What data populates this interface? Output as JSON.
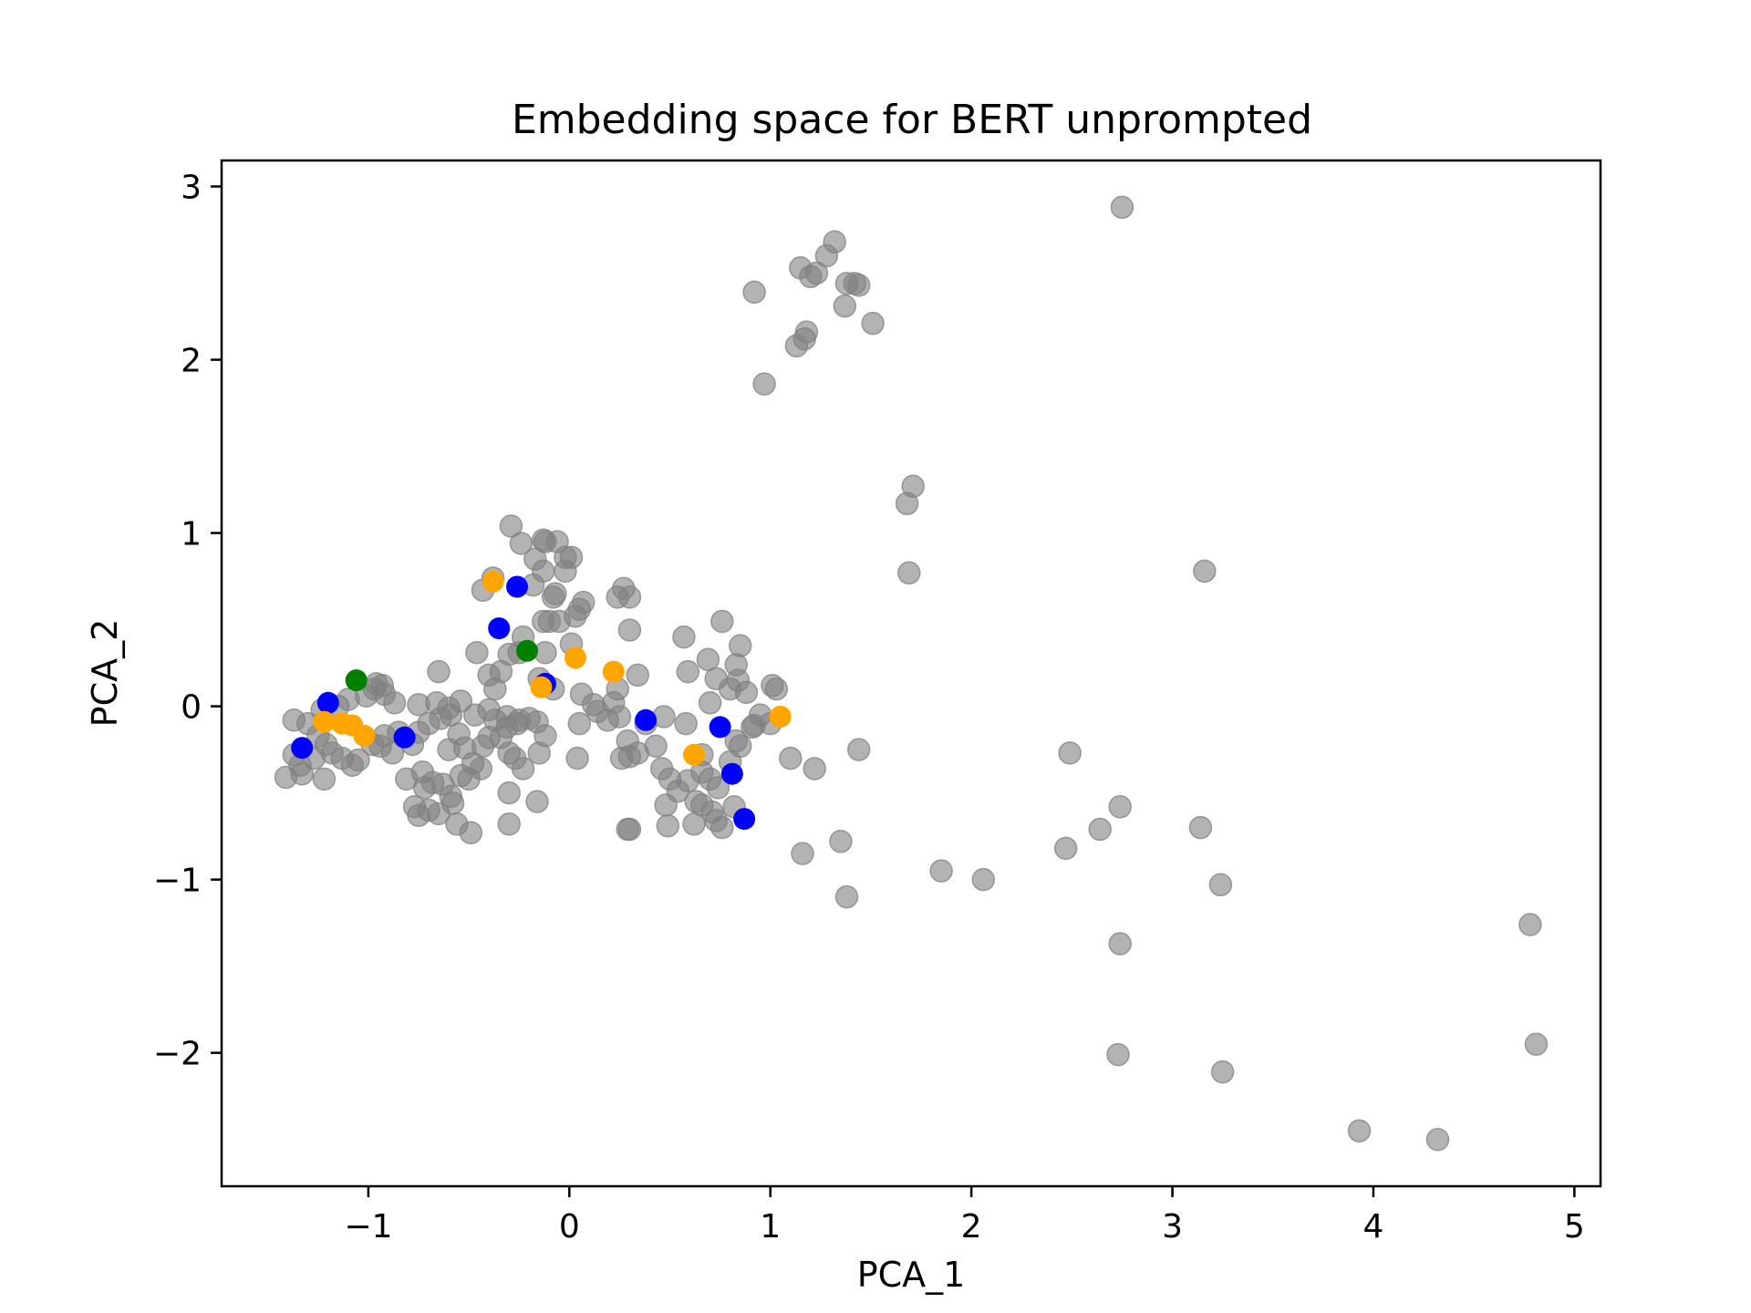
{
  "chart_data": {
    "type": "scatter",
    "title": "Embedding space for BERT unprompted",
    "xlabel": "PCA_1",
    "ylabel": "PCA_2",
    "xlim": [
      -1.73,
      5.13
    ],
    "ylim": [
      -2.77,
      3.15
    ],
    "grid": false,
    "x_ticks": [
      {
        "value": -1,
        "label": "−1"
      },
      {
        "value": 0,
        "label": "0"
      },
      {
        "value": 1,
        "label": "1"
      },
      {
        "value": 2,
        "label": "2"
      },
      {
        "value": 3,
        "label": "3"
      },
      {
        "value": 4,
        "label": "4"
      },
      {
        "value": 5,
        "label": "5"
      }
    ],
    "y_ticks": [
      {
        "value": 3,
        "label": "3"
      },
      {
        "value": 2,
        "label": "2"
      },
      {
        "value": 1,
        "label": "1"
      },
      {
        "value": 0,
        "label": "0"
      },
      {
        "value": -1,
        "label": "−1"
      },
      {
        "value": -2,
        "label": "−2"
      }
    ],
    "series": [
      {
        "color": "#808080",
        "opacity": 0.6,
        "points": [
          [
            2.75,
            2.88
          ],
          [
            1.32,
            2.68
          ],
          [
            1.28,
            2.6
          ],
          [
            1.15,
            2.53
          ],
          [
            1.23,
            2.5
          ],
          [
            1.2,
            2.48
          ],
          [
            1.38,
            2.44
          ],
          [
            1.42,
            2.44
          ],
          [
            1.44,
            2.43
          ],
          [
            0.92,
            2.39
          ],
          [
            1.37,
            2.31
          ],
          [
            1.51,
            2.21
          ],
          [
            1.18,
            2.16
          ],
          [
            1.17,
            2.12
          ],
          [
            1.13,
            2.08
          ],
          [
            0.97,
            1.86
          ],
          [
            1.71,
            1.27
          ],
          [
            1.68,
            1.17
          ],
          [
            1.69,
            0.77
          ],
          [
            3.16,
            0.78
          ],
          [
            2.49,
            -0.27
          ],
          [
            1.44,
            -0.25
          ],
          [
            2.74,
            -0.58
          ],
          [
            2.64,
            -0.71
          ],
          [
            3.14,
            -0.7
          ],
          [
            1.35,
            -0.78
          ],
          [
            2.47,
            -0.82
          ],
          [
            1.16,
            -0.85
          ],
          [
            1.85,
            -0.95
          ],
          [
            2.06,
            -1.0
          ],
          [
            3.24,
            -1.03
          ],
          [
            1.38,
            -1.1
          ],
          [
            2.74,
            -1.37
          ],
          [
            4.78,
            -1.26
          ],
          [
            4.81,
            -1.95
          ],
          [
            2.73,
            -2.01
          ],
          [
            3.25,
            -2.11
          ],
          [
            3.93,
            -2.45
          ],
          [
            4.32,
            -2.5
          ],
          [
            -0.29,
            1.04
          ],
          [
            -0.13,
            0.96
          ],
          [
            -0.12,
            0.95
          ],
          [
            -0.06,
            0.95
          ],
          [
            -0.24,
            0.94
          ],
          [
            -0.17,
            0.85
          ],
          [
            0.01,
            0.86
          ],
          [
            -0.02,
            0.86
          ],
          [
            -0.13,
            0.78
          ],
          [
            -0.02,
            0.78
          ],
          [
            -0.38,
            0.74
          ],
          [
            -0.43,
            0.67
          ],
          [
            -0.18,
            0.7
          ],
          [
            -0.07,
            0.65
          ],
          [
            -0.08,
            0.63
          ],
          [
            0.27,
            0.68
          ],
          [
            0.3,
            0.63
          ],
          [
            0.24,
            0.63
          ],
          [
            0.07,
            0.6
          ],
          [
            0.05,
            0.56
          ],
          [
            0.03,
            0.52
          ],
          [
            -0.1,
            0.49
          ],
          [
            -0.05,
            0.49
          ],
          [
            -0.13,
            0.49
          ],
          [
            -0.23,
            0.4
          ],
          [
            0.3,
            0.44
          ],
          [
            0.57,
            0.4
          ],
          [
            0.76,
            0.49
          ],
          [
            0.01,
            0.36
          ],
          [
            -0.12,
            0.31
          ],
          [
            -0.25,
            0.31
          ],
          [
            -0.3,
            0.3
          ],
          [
            -0.46,
            0.31
          ],
          [
            -0.65,
            0.2
          ],
          [
            0.69,
            0.27
          ],
          [
            0.85,
            0.35
          ],
          [
            0.59,
            0.2
          ],
          [
            0.73,
            0.16
          ],
          [
            0.83,
            0.24
          ],
          [
            0.84,
            0.15
          ],
          [
            0.8,
            0.1
          ],
          [
            0.7,
            0.02
          ],
          [
            1.01,
            0.12
          ],
          [
            1.03,
            0.1
          ],
          [
            0.88,
            0.08
          ],
          [
            0.34,
            0.18
          ],
          [
            0.24,
            0.1
          ],
          [
            0.22,
            0.02
          ],
          [
            0.06,
            0.07
          ],
          [
            0.12,
            0.01
          ],
          [
            -0.08,
            0.1
          ],
          [
            -0.37,
            0.1
          ],
          [
            -0.4,
            0.18
          ],
          [
            -0.34,
            0.2
          ],
          [
            -0.15,
            0.16
          ],
          [
            -0.97,
            0.1
          ],
          [
            -0.93,
            0.12
          ],
          [
            -0.92,
            0.07
          ],
          [
            -0.96,
            0.13
          ],
          [
            -1.01,
            0.06
          ],
          [
            -1.1,
            0.04
          ],
          [
            -0.87,
            0.02
          ],
          [
            -0.75,
            0.01
          ],
          [
            -1.15,
            0.0
          ],
          [
            -1.23,
            -0.02
          ],
          [
            -1.37,
            -0.08
          ],
          [
            -1.3,
            -0.1
          ],
          [
            -1.25,
            -0.17
          ],
          [
            -1.21,
            -0.22
          ],
          [
            -1.18,
            -0.27
          ],
          [
            -1.13,
            -0.3
          ],
          [
            -1.08,
            -0.34
          ],
          [
            -1.05,
            -0.31
          ],
          [
            -1.27,
            -0.3
          ],
          [
            -1.34,
            -0.34
          ],
          [
            -1.37,
            -0.28
          ],
          [
            -1.41,
            -0.41
          ],
          [
            -1.33,
            -0.39
          ],
          [
            -1.22,
            -0.42
          ],
          [
            -0.98,
            -0.22
          ],
          [
            -0.94,
            -0.23
          ],
          [
            -0.92,
            -0.17
          ],
          [
            -0.88,
            -0.27
          ],
          [
            -0.81,
            -0.42
          ],
          [
            -0.85,
            -0.15
          ],
          [
            -0.78,
            -0.22
          ],
          [
            -0.75,
            -0.15
          ],
          [
            -0.7,
            -0.1
          ],
          [
            -0.64,
            -0.07
          ],
          [
            -0.59,
            -0.05
          ],
          [
            -0.55,
            -0.16
          ],
          [
            -0.6,
            -0.25
          ],
          [
            -0.52,
            -0.24
          ],
          [
            -0.48,
            -0.33
          ],
          [
            -0.43,
            -0.23
          ],
          [
            -0.4,
            -0.18
          ],
          [
            -0.34,
            -0.18
          ],
          [
            -0.3,
            -0.27
          ],
          [
            -0.27,
            -0.3
          ],
          [
            -0.23,
            -0.36
          ],
          [
            -0.15,
            -0.27
          ],
          [
            -0.12,
            -0.17
          ],
          [
            -0.16,
            -0.09
          ],
          [
            -0.25,
            -0.08
          ],
          [
            -0.31,
            -0.06
          ],
          [
            -0.37,
            -0.08
          ],
          [
            -0.4,
            -0.02
          ],
          [
            -0.47,
            -0.05
          ],
          [
            -0.54,
            0.03
          ],
          [
            -0.6,
            -0.01
          ],
          [
            -0.66,
            0.02
          ],
          [
            -0.31,
            -0.12
          ],
          [
            -0.26,
            -0.1
          ],
          [
            -0.2,
            -0.07
          ],
          [
            -0.73,
            -0.38
          ],
          [
            -0.72,
            -0.47
          ],
          [
            -0.68,
            -0.44
          ],
          [
            -0.63,
            -0.45
          ],
          [
            -0.59,
            -0.52
          ],
          [
            -0.58,
            -0.56
          ],
          [
            -0.65,
            -0.62
          ],
          [
            -0.7,
            -0.6
          ],
          [
            -0.77,
            -0.58
          ],
          [
            -0.75,
            -0.63
          ],
          [
            -0.56,
            -0.68
          ],
          [
            -0.49,
            -0.73
          ],
          [
            -0.44,
            -0.36
          ],
          [
            -0.5,
            -0.42
          ],
          [
            -0.54,
            -0.4
          ],
          [
            -0.3,
            -0.5
          ],
          [
            -0.3,
            -0.68
          ],
          [
            -0.16,
            -0.55
          ],
          [
            0.05,
            -0.1
          ],
          [
            0.04,
            -0.3
          ],
          [
            0.14,
            -0.03
          ],
          [
            0.19,
            -0.08
          ],
          [
            0.25,
            -0.06
          ],
          [
            0.29,
            -0.2
          ],
          [
            0.26,
            -0.3
          ],
          [
            0.34,
            -0.27
          ],
          [
            0.3,
            -0.29
          ],
          [
            0.43,
            -0.23
          ],
          [
            0.38,
            -0.1
          ],
          [
            0.46,
            -0.36
          ],
          [
            0.5,
            -0.42
          ],
          [
            0.54,
            -0.49
          ],
          [
            0.48,
            -0.57
          ],
          [
            0.49,
            -0.69
          ],
          [
            0.3,
            -0.71
          ],
          [
            0.29,
            -0.71
          ],
          [
            0.59,
            -0.43
          ],
          [
            0.63,
            -0.55
          ],
          [
            0.66,
            -0.57
          ],
          [
            0.71,
            -0.61
          ],
          [
            0.73,
            -0.66
          ],
          [
            0.76,
            -0.7
          ],
          [
            0.62,
            -0.68
          ],
          [
            0.82,
            -0.58
          ],
          [
            0.66,
            -0.38
          ],
          [
            0.7,
            -0.42
          ],
          [
            0.74,
            -0.47
          ],
          [
            0.8,
            -0.32
          ],
          [
            0.85,
            -0.23
          ],
          [
            0.92,
            -0.11
          ],
          [
            0.95,
            -0.05
          ],
          [
            1.0,
            -0.1
          ],
          [
            1.1,
            -0.3
          ],
          [
            1.22,
            -0.36
          ],
          [
            0.58,
            -0.1
          ],
          [
            0.66,
            -0.28
          ],
          [
            0.47,
            -0.06
          ],
          [
            0.83,
            -0.2
          ],
          [
            0.91,
            -0.12
          ]
        ]
      },
      {
        "color": "#0000ff",
        "opacity": 1,
        "points": [
          [
            -1.2,
            0.02
          ],
          [
            -1.33,
            -0.24
          ],
          [
            -0.82,
            -0.18
          ],
          [
            -0.26,
            0.69
          ],
          [
            -0.35,
            0.45
          ],
          [
            -0.12,
            0.13
          ],
          [
            0.38,
            -0.08
          ],
          [
            0.75,
            -0.12
          ],
          [
            0.81,
            -0.39
          ],
          [
            0.87,
            -0.65
          ]
        ]
      },
      {
        "color": "#ffa500",
        "opacity": 1,
        "points": [
          [
            -1.22,
            -0.09
          ],
          [
            -1.13,
            -0.1
          ],
          [
            -1.08,
            -0.11
          ],
          [
            -1.02,
            -0.17
          ],
          [
            -0.38,
            0.72
          ],
          [
            -0.14,
            0.11
          ],
          [
            0.03,
            0.28
          ],
          [
            0.22,
            0.2
          ],
          [
            0.62,
            -0.28
          ],
          [
            1.05,
            -0.06
          ]
        ]
      },
      {
        "color": "#008000",
        "opacity": 1,
        "points": [
          [
            -1.06,
            0.15
          ],
          [
            -0.21,
            0.32
          ]
        ]
      }
    ]
  }
}
